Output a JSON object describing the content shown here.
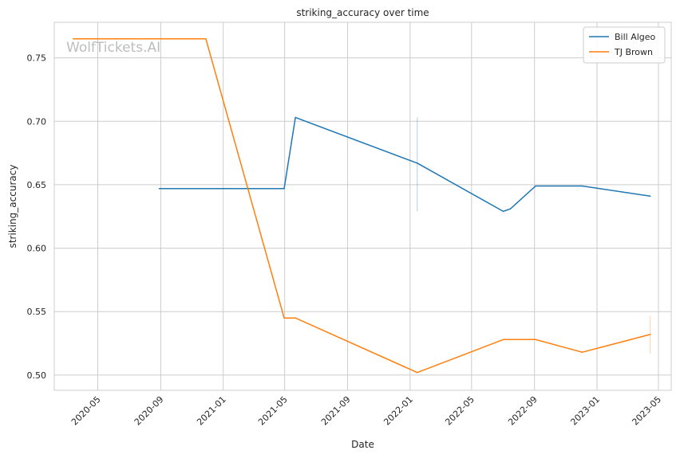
{
  "watermark": "WolfTickets.AI",
  "chart_data": {
    "type": "line",
    "title": "striking_accuracy over time",
    "xlabel": "Date",
    "ylabel": "striking_accuracy",
    "x_axis_type": "date",
    "xlim": [
      "2020-02-06",
      "2023-05-26"
    ],
    "ylim": [
      0.488,
      0.778
    ],
    "x_ticks": [
      "2020-05-01",
      "2020-09-01",
      "2021-01-01",
      "2021-05-01",
      "2021-09-01",
      "2022-01-01",
      "2022-05-01",
      "2022-09-01",
      "2023-01-01",
      "2023-05-01"
    ],
    "x_tick_labels": [
      "2020-05",
      "2020-09",
      "2021-01",
      "2021-05",
      "2021-09",
      "2022-01",
      "2022-05",
      "2022-09",
      "2023-01",
      "2023-05"
    ],
    "y_ticks": [
      0.5,
      0.55,
      0.6,
      0.65,
      0.7,
      0.75
    ],
    "y_tick_labels": [
      "0.50",
      "0.55",
      "0.60",
      "0.65",
      "0.70",
      "0.75"
    ],
    "grid": true,
    "legend_position": "top-right",
    "series": [
      {
        "name": "Bill Algeo",
        "color": "#1f77b4",
        "points": [
          [
            "2020-08-29",
            0.647
          ],
          [
            "2021-04-30",
            0.647
          ],
          [
            "2021-05-22",
            0.703
          ],
          [
            "2022-01-15",
            0.667
          ],
          [
            "2022-07-02",
            0.629
          ],
          [
            "2022-07-16",
            0.631
          ],
          [
            "2022-09-03",
            0.649
          ],
          [
            "2022-12-03",
            0.649
          ],
          [
            "2023-04-15",
            0.641
          ]
        ],
        "error_bars": [
          {
            "x": "2022-01-15",
            "low": 0.629,
            "high": 0.703
          }
        ]
      },
      {
        "name": "TJ Brown",
        "color": "#ff7f0e",
        "points": [
          [
            "2020-03-14",
            0.765
          ],
          [
            "2020-11-28",
            0.765
          ],
          [
            "2021-04-30",
            0.545
          ],
          [
            "2021-05-22",
            0.545
          ],
          [
            "2022-01-15",
            0.502
          ],
          [
            "2022-07-02",
            0.528
          ],
          [
            "2022-09-03",
            0.528
          ],
          [
            "2022-12-03",
            0.518
          ],
          [
            "2023-04-15",
            0.532
          ]
        ],
        "error_bars": [
          {
            "x": "2023-04-15",
            "low": 0.517,
            "high": 0.547
          }
        ]
      }
    ]
  }
}
